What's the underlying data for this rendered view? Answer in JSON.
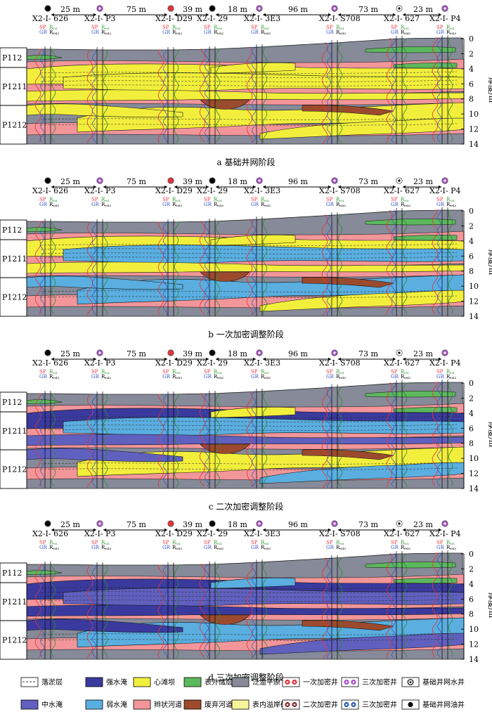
{
  "figure": {
    "wells": [
      {
        "name": "X2-Ⅰ- 626",
        "type": "base-oil"
      },
      {
        "name": "X2-Ⅰ- P3",
        "type": "third-infill"
      },
      {
        "name": "X2-Ⅰ- D29",
        "type": "first-infill"
      },
      {
        "name": "X2-Ⅰ- 29",
        "type": "base-oil"
      },
      {
        "name": "X2-Ⅰ- 3E3",
        "type": "third-infill"
      },
      {
        "name": "X2-Ⅰ- S708",
        "type": "third-infill"
      },
      {
        "name": "X2-Ⅰ- 627",
        "type": "base-water"
      },
      {
        "name": "X2-Ⅰ- P4",
        "type": "third-infill"
      }
    ],
    "distances": [
      "25 m",
      "75 m",
      "39 m",
      "18 m",
      "96 m",
      "73 m",
      "23 m"
    ],
    "log_labels": {
      "sp": "SP",
      "gr": "GR",
      "r1": "R",
      "r1_sub": "M4",
      "r2": "R",
      "r2_sub": "M45"
    },
    "layers": [
      "P112",
      "P1211",
      "P1212"
    ],
    "axis_title": "厚度/m",
    "depth_ticks": [
      "0",
      "2",
      "4",
      "6",
      "8",
      "10",
      "12",
      "14"
    ],
    "panels": [
      {
        "caption": "a  基础井网阶段"
      },
      {
        "caption": "b  一次加密调整阶段"
      },
      {
        "caption": "c  二次加密调整阶段"
      },
      {
        "caption": "d  三次加密调整阶段"
      }
    ]
  },
  "legend": {
    "items": [
      {
        "label": "落淤层",
        "kind": "dash"
      },
      {
        "label": "强水淹",
        "kind": "fill",
        "color": "#3a3a9e"
      },
      {
        "label": "心滩坝",
        "kind": "fill",
        "color": "#f2ef3c"
      },
      {
        "label": "表外储层",
        "kind": "fill",
        "color": "#5cb85c"
      },
      {
        "label": "泛滥平原",
        "kind": "fill",
        "color": "#868a99"
      },
      {
        "label": "一次加密井",
        "kind": "well",
        "dot1": "#e4333b",
        "dot2": "#e4333b"
      },
      {
        "label": "三次加密井",
        "kind": "well",
        "dot1": "#b04fcf",
        "dot2": "#b04fcf"
      },
      {
        "label": "基础井网水井",
        "kind": "ring"
      },
      {
        "label": "中水淹",
        "kind": "fill",
        "color": "#6060bf"
      },
      {
        "label": "弱水淹",
        "kind": "fill",
        "color": "#5aaee0"
      },
      {
        "label": "辫状河道",
        "kind": "fill",
        "color": "#f2969a"
      },
      {
        "label": "废弃河道",
        "kind": "fill",
        "color": "#9c4a2e"
      },
      {
        "label": "表内溢岸砂",
        "kind": "fill",
        "color": "#f7f59a"
      },
      {
        "label": "二次加密井",
        "kind": "well",
        "dot1": "#8b2d2d",
        "dot2": "#8b2d2d"
      },
      {
        "label": "三次加密井",
        "kind": "well",
        "dot1": "#2e5fb8",
        "dot2": "#2e5fb8"
      },
      {
        "label": "基础井网油井",
        "kind": "dot"
      }
    ]
  }
}
